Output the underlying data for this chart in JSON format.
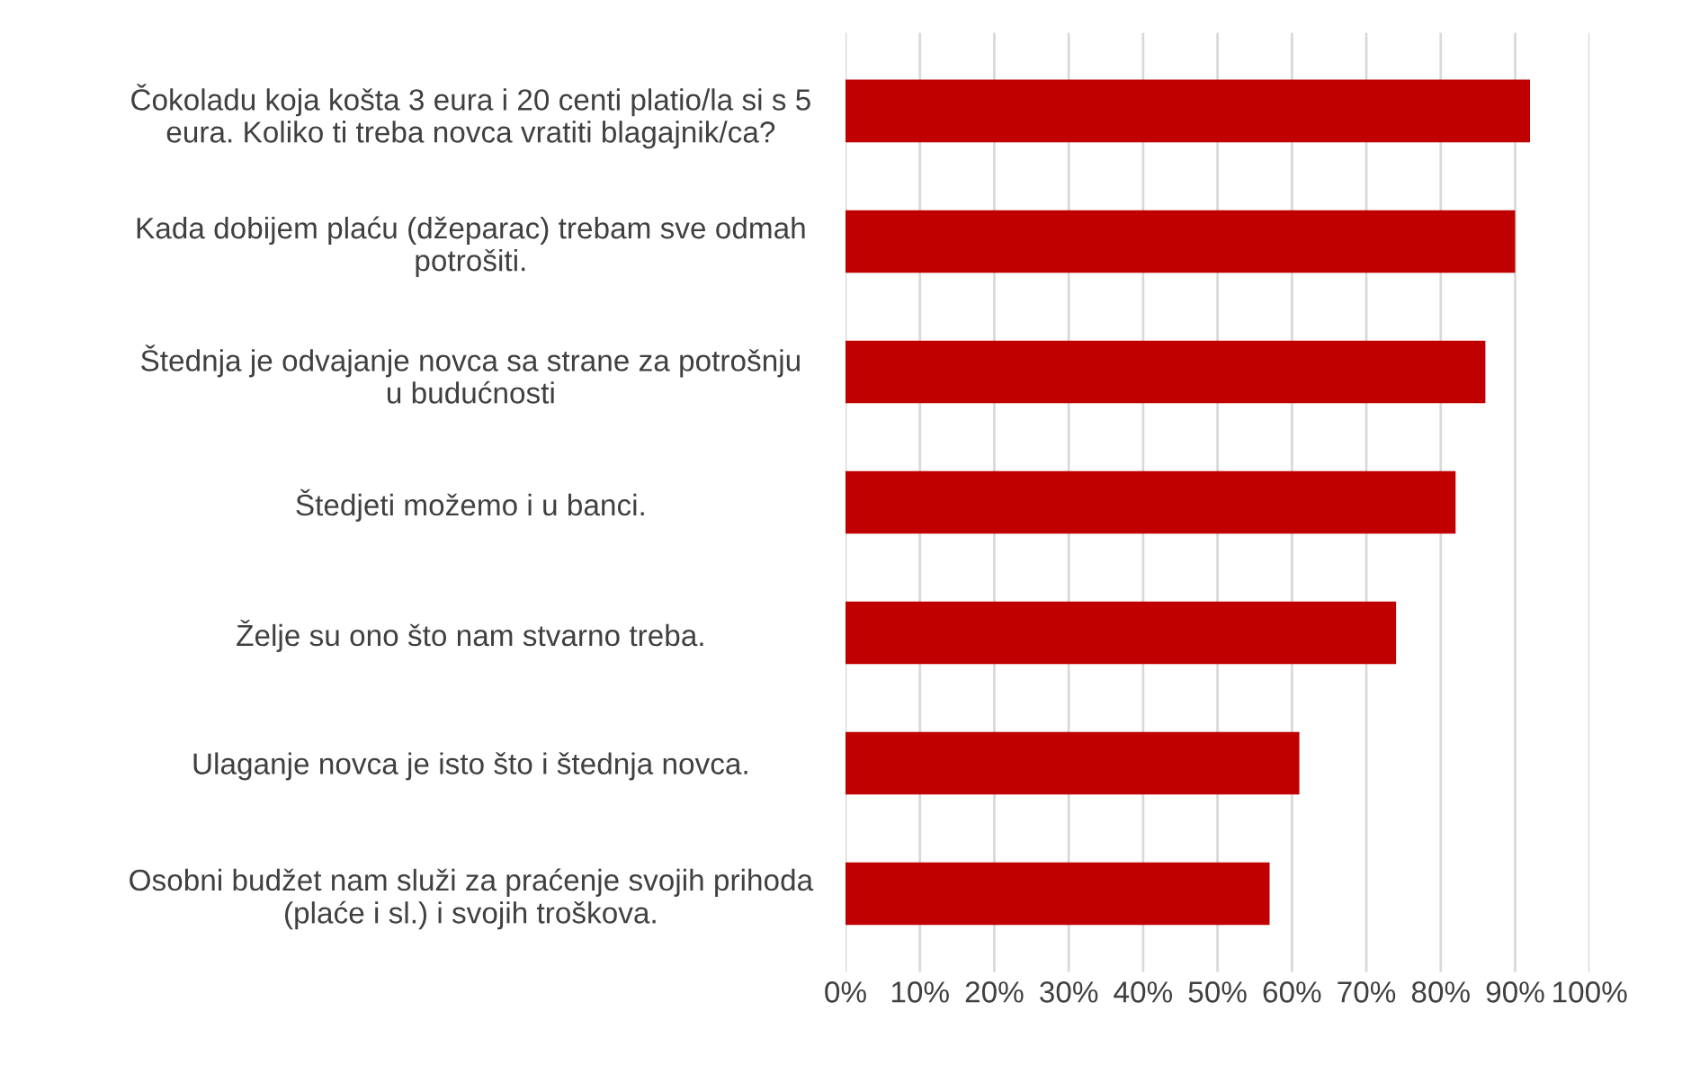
{
  "chart_data": {
    "type": "bar",
    "orientation": "horizontal",
    "categories": [
      "Čokoladu koja košta 3 eura i 20 centi platio/la si s 5\neura. Koliko ti treba novca vratiti blagajnik/ca?",
      "Kada dobijem plaću (džeparac) trebam sve odmah\npotrošiti.",
      "Štednja je odvajanje novca sa strane za potrošnju\nu budućnosti",
      "Štedjeti možemo i u banci.",
      "Želje su ono što nam stvarno treba.",
      "Ulaganje novca je isto što i štednja novca.",
      "Osobni budžet nam služi za praćenje svojih prihoda\n(plaće i sl.) i svojih troškova."
    ],
    "values": [
      92,
      90,
      86,
      82,
      74,
      61,
      57
    ],
    "color": "#c00000",
    "xlim": [
      0,
      100
    ],
    "xticks": [
      {
        "value": 0,
        "label": "0%"
      },
      {
        "value": 10,
        "label": "10%"
      },
      {
        "value": 20,
        "label": "20%"
      },
      {
        "value": 30,
        "label": "30%"
      },
      {
        "value": 40,
        "label": "40%"
      },
      {
        "value": 50,
        "label": "50%"
      },
      {
        "value": 60,
        "label": "60%"
      },
      {
        "value": 70,
        "label": "70%"
      },
      {
        "value": 80,
        "label": "80%"
      },
      {
        "value": 90,
        "label": "90%"
      },
      {
        "value": 100,
        "label": "100%"
      }
    ],
    "grid": "x"
  }
}
